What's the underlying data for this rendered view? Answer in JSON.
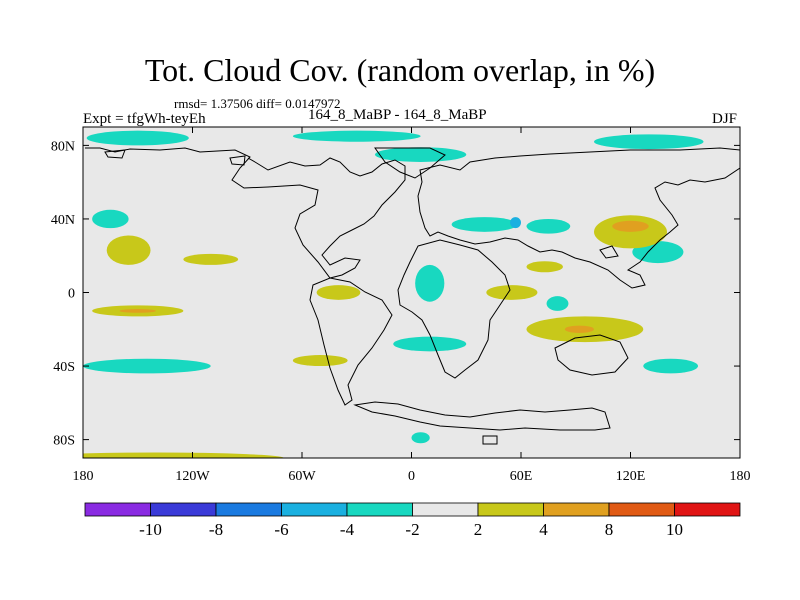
{
  "header": {
    "title": "Tot. Cloud Cov. (random overlap, in %)",
    "stats": "rmsd= 1.37506 diff= 0.0147972",
    "expt": "Expt = tfgWh-teyEh",
    "comparison": "164_8_MaBP - 164_8_MaBP",
    "season": "DJF"
  },
  "chart_data": {
    "type": "heatmap",
    "title": "Tot. Cloud Cov. (random overlap, in %)",
    "xaxis": {
      "range": [
        -180,
        180
      ],
      "ticks": [
        -180,
        -120,
        -60,
        0,
        60,
        120,
        180
      ],
      "tick_labels": [
        "180",
        "120W",
        "60W",
        "0",
        "60E",
        "120E",
        "180"
      ]
    },
    "yaxis": {
      "range": [
        -90,
        90
      ],
      "ticks": [
        80,
        40,
        0,
        -40,
        -80
      ],
      "tick_labels": [
        "80N",
        "40N",
        "0",
        "40S",
        "80S"
      ]
    },
    "colorbar": {
      "levels": [
        -10,
        -8,
        -6,
        -4,
        -2,
        2,
        4,
        8,
        10
      ],
      "labels": [
        "-10",
        "-8",
        "-6",
        "-4",
        "-2",
        "2",
        "4",
        "8",
        "10"
      ],
      "colors": [
        "#8a2be2",
        "#3a3ad8",
        "#1a7ae0",
        "#1ab0e0",
        "#18d8c0",
        "#e8e8e8",
        "#c8c81a",
        "#e0a020",
        "#e05a14",
        "#e01414"
      ]
    },
    "background_color": "#e8e8e8",
    "anomalies": [
      {
        "category": "-2",
        "color": "#18d8c0",
        "lon": -150,
        "lat": 84,
        "rx": 28,
        "ry": 4
      },
      {
        "category": "-2",
        "color": "#18d8c0",
        "lon": -30,
        "lat": 85,
        "rx": 35,
        "ry": 3
      },
      {
        "category": "-2",
        "color": "#18d8c0",
        "lon": 130,
        "lat": 82,
        "rx": 30,
        "ry": 4
      },
      {
        "category": "-2",
        "color": "#18d8c0",
        "lon": 5,
        "lat": 75,
        "rx": 25,
        "ry": 4
      },
      {
        "category": "-2",
        "color": "#18d8c0",
        "lon": -165,
        "lat": 40,
        "rx": 10,
        "ry": 5
      },
      {
        "category": "-2",
        "color": "#18d8c0",
        "lon": 40,
        "lat": 37,
        "rx": 18,
        "ry": 4
      },
      {
        "category": "-2",
        "color": "#18d8c0",
        "lon": 75,
        "lat": 36,
        "rx": 12,
        "ry": 4
      },
      {
        "category": "-2",
        "color": "#18d8c0",
        "lon": 135,
        "lat": 22,
        "rx": 14,
        "ry": 6
      },
      {
        "category": "-2",
        "color": "#18d8c0",
        "lon": 10,
        "lat": 5,
        "rx": 8,
        "ry": 10
      },
      {
        "category": "-2",
        "color": "#18d8c0",
        "lon": 80,
        "lat": -6,
        "rx": 6,
        "ry": 4
      },
      {
        "category": "-2",
        "color": "#18d8c0",
        "lon": 10,
        "lat": -28,
        "rx": 20,
        "ry": 4
      },
      {
        "category": "-2",
        "color": "#18d8c0",
        "lon": -145,
        "lat": -40,
        "rx": 35,
        "ry": 4
      },
      {
        "category": "-2",
        "color": "#18d8c0",
        "lon": 142,
        "lat": -40,
        "rx": 15,
        "ry": 4
      },
      {
        "category": "-2",
        "color": "#18d8c0",
        "lon": 5,
        "lat": -79,
        "rx": 5,
        "ry": 3
      },
      {
        "category": "-4",
        "color": "#1ab0e0",
        "lon": 57,
        "lat": 38,
        "rx": 3,
        "ry": 3
      },
      {
        "category": "2",
        "color": "#c8c81a",
        "lon": -155,
        "lat": 23,
        "rx": 12,
        "ry": 8
      },
      {
        "category": "2",
        "color": "#c8c81a",
        "lon": -110,
        "lat": 18,
        "rx": 15,
        "ry": 3
      },
      {
        "category": "2",
        "color": "#c8c81a",
        "lon": 120,
        "lat": 33,
        "rx": 20,
        "ry": 9
      },
      {
        "category": "2",
        "color": "#c8c81a",
        "lon": 73,
        "lat": 14,
        "rx": 10,
        "ry": 3
      },
      {
        "category": "2",
        "color": "#c8c81a",
        "lon": 55,
        "lat": 0,
        "rx": 14,
        "ry": 4
      },
      {
        "category": "2",
        "color": "#c8c81a",
        "lon": -40,
        "lat": 0,
        "rx": 12,
        "ry": 4
      },
      {
        "category": "2",
        "color": "#c8c81a",
        "lon": 95,
        "lat": -20,
        "rx": 32,
        "ry": 7
      },
      {
        "category": "2",
        "color": "#c8c81a",
        "lon": -150,
        "lat": -10,
        "rx": 25,
        "ry": 3
      },
      {
        "category": "2",
        "color": "#c8c81a",
        "lon": -140,
        "lat": -90,
        "rx": 70,
        "ry": 3
      },
      {
        "category": "2",
        "color": "#c8c81a",
        "lon": -50,
        "lat": -37,
        "rx": 15,
        "ry": 3
      },
      {
        "category": "4",
        "color": "#e0a020",
        "lon": 120,
        "lat": 36,
        "rx": 10,
        "ry": 3
      },
      {
        "category": "4",
        "color": "#e0a020",
        "lon": 92,
        "lat": -20,
        "rx": 8,
        "ry": 2
      },
      {
        "category": "4",
        "color": "#e0a020",
        "lon": -150,
        "lat": -10,
        "rx": 10,
        "ry": 1
      }
    ]
  }
}
